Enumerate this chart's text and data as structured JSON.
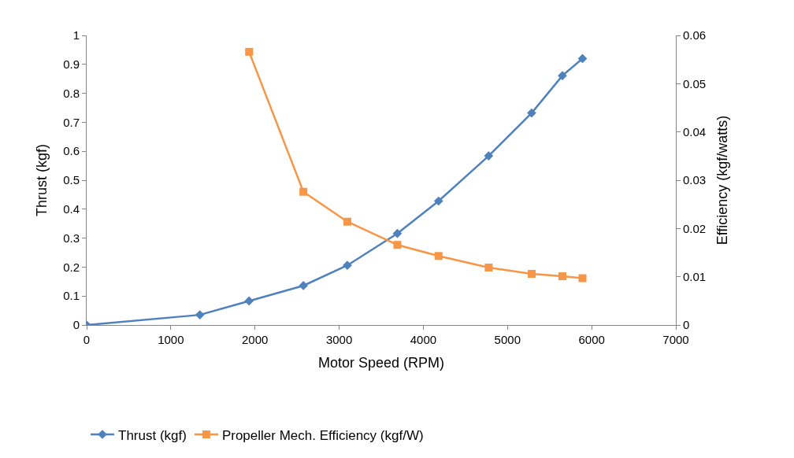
{
  "chart_data": {
    "type": "line",
    "xlabel": "Motor Speed (RPM)",
    "ylabel": "Thrust (kgf)",
    "y2label": "Efficiency (kgf/watts)",
    "series": [
      {
        "name": "Thrust (kgf)",
        "color": "#4f81bd",
        "marker": "diamond",
        "x": [
          0,
          1345,
          1930,
          2575,
          3097,
          3691,
          4181,
          4776,
          5287,
          5652,
          5891
        ],
        "values": [
          0,
          0.035,
          0.083,
          0.136,
          0.206,
          0.316,
          0.428,
          0.584,
          0.732,
          0.861,
          0.92
        ]
      },
      {
        "name": "Propeller Mech. Efficiency (kgf/W)",
        "color": "#f79646",
        "marker": "square",
        "axis": "y2",
        "x": [
          1930,
          2575,
          3097,
          3691,
          4181,
          4776,
          5287,
          5652,
          5891
        ],
        "values": [
          0.0566,
          0.0276,
          0.0214,
          0.0166,
          0.0143,
          0.0119,
          0.0106,
          0.0101,
          0.0097
        ]
      }
    ],
    "xlim": [
      0,
      7000
    ],
    "xticks": [
      0,
      1000,
      2000,
      3000,
      4000,
      5000,
      6000,
      7000
    ],
    "ylim": [
      0,
      1
    ],
    "yticks": [
      0,
      0.1,
      0.2,
      0.3,
      0.4,
      0.5,
      0.6,
      0.7,
      0.8,
      0.9,
      1
    ],
    "y2lim": [
      0,
      0.06
    ],
    "y2ticks": [
      0,
      0.01,
      0.02,
      0.03,
      0.04,
      0.05,
      0.06
    ],
    "legend": "bottom"
  }
}
